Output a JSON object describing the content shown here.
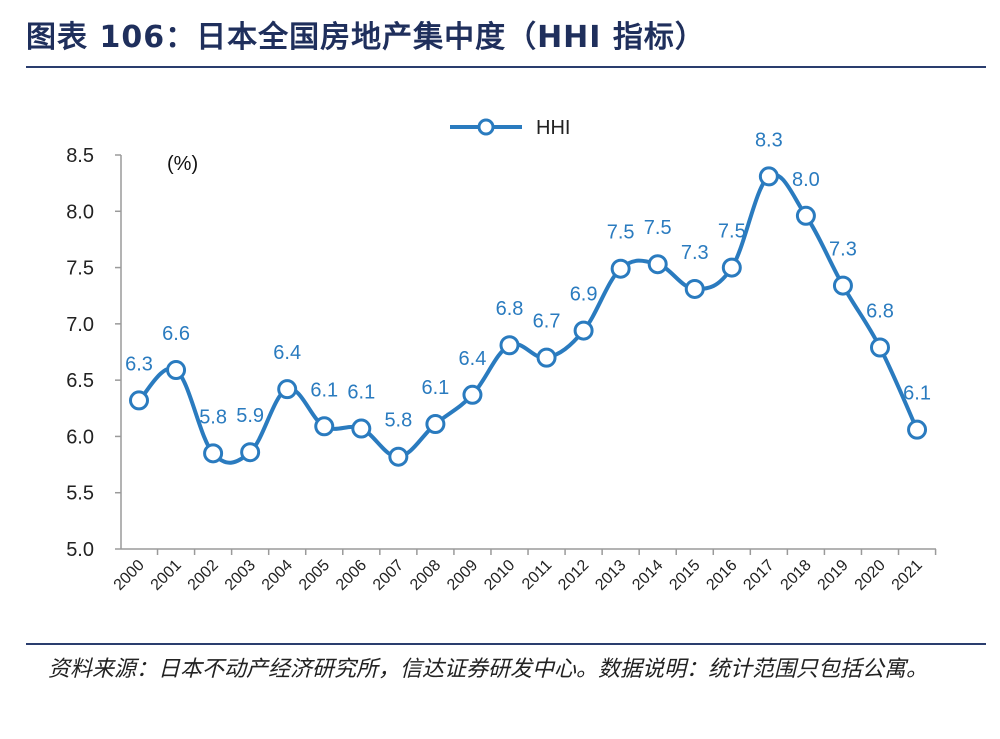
{
  "title": "图表 106：日本全国房地产集中度（HHI 指标）",
  "source": "资料来源：日本不动产经济研究所，信达证券研发中心。数据说明：统计范围只包括公寓。",
  "colors": {
    "line": "#2a7bbf",
    "label": "#2a7bbf",
    "axis": "#9a9a9a",
    "title": "#1f2f5c"
  },
  "chart_data": {
    "type": "line",
    "unit_label": "(%)",
    "categories": [
      "2000",
      "2001",
      "2002",
      "2003",
      "2004",
      "2005",
      "2006",
      "2007",
      "2008",
      "2009",
      "2010",
      "2011",
      "2012",
      "2013",
      "2014",
      "2015",
      "2016",
      "2017",
      "2018",
      "2019",
      "2020",
      "2021"
    ],
    "series": [
      {
        "name": "HHI",
        "values": [
          6.32,
          6.59,
          5.85,
          5.86,
          6.42,
          6.09,
          6.07,
          5.82,
          6.11,
          6.37,
          6.81,
          6.7,
          6.94,
          7.49,
          7.53,
          7.31,
          7.5,
          8.31,
          7.96,
          7.34,
          6.79,
          6.06
        ],
        "labels": [
          "6.3",
          "6.6",
          "5.8",
          "5.9",
          "6.4",
          "6.1",
          "6.1",
          "5.8",
          "6.1",
          "6.4",
          "6.8",
          "6.7",
          "6.9",
          "7.5",
          "7.5",
          "7.3",
          "7.5",
          "8.3",
          "8.0",
          "7.3",
          "6.8",
          "6.1"
        ]
      }
    ],
    "ylim": [
      5.0,
      8.5
    ],
    "yticks": [
      "5.0",
      "5.5",
      "6.0",
      "6.5",
      "7.0",
      "7.5",
      "8.0",
      "8.5"
    ],
    "legend_position": "top-center",
    "grid": false
  }
}
